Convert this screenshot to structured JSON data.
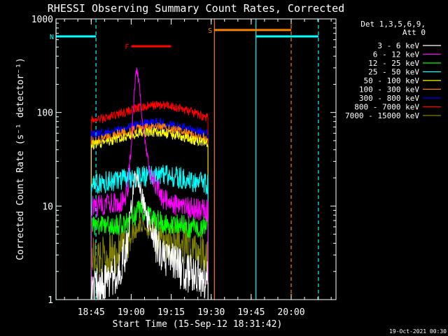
{
  "chart_data": {
    "type": "line",
    "title": "RHESSI Observing Summary Count Rates, Corrected",
    "xlabel": "Start Time (15-Sep-12 18:31:42)",
    "ylabel": "Corrected Count Rate (s⁻¹ detector⁻¹)",
    "y_scale": "log",
    "ylim": [
      1,
      1000
    ],
    "xlim": [
      18.53,
      20.28
    ],
    "x_ticks": [
      {
        "value": 18.75,
        "label": "18:45"
      },
      {
        "value": 19.0,
        "label": "19:00"
      },
      {
        "value": 19.25,
        "label": "19:15"
      },
      {
        "value": 19.5,
        "label": "19:30"
      },
      {
        "value": 19.75,
        "label": "19:45"
      },
      {
        "value": 20.0,
        "label": "20:00"
      }
    ],
    "y_ticks": [
      {
        "value": 1,
        "label": "1"
      },
      {
        "value": 10,
        "label": "10"
      },
      {
        "value": 100,
        "label": "100"
      },
      {
        "value": 1000,
        "label": "1000"
      }
    ],
    "legend_header": [
      "Det 1,3,5,6,9,",
      "Att 0"
    ],
    "legend_position": "right",
    "series": [
      {
        "name": "3 - 6 keV",
        "color": "#ffffff",
        "points": [
          [
            18.75,
            1.2
          ],
          [
            18.8,
            1.4
          ],
          [
            18.87,
            1.7
          ],
          [
            18.92,
            2.0
          ],
          [
            18.97,
            3.5
          ],
          [
            19.0,
            10
          ],
          [
            19.02,
            18
          ],
          [
            19.04,
            20
          ],
          [
            19.06,
            14
          ],
          [
            19.09,
            9
          ],
          [
            19.12,
            5.5
          ],
          [
            19.17,
            3.5
          ],
          [
            19.25,
            2.5
          ],
          [
            19.33,
            2.0
          ],
          [
            19.42,
            1.8
          ],
          [
            19.48,
            1.6
          ]
        ]
      },
      {
        "name": "6 - 12 keV",
        "color": "#ff00ff",
        "points": [
          [
            18.75,
            10
          ],
          [
            18.85,
            10.5
          ],
          [
            18.95,
            11
          ],
          [
            18.98,
            16
          ],
          [
            19.0,
            40
          ],
          [
            19.02,
            180
          ],
          [
            19.035,
            300
          ],
          [
            19.05,
            200
          ],
          [
            19.07,
            80
          ],
          [
            19.1,
            35
          ],
          [
            19.13,
            20
          ],
          [
            19.2,
            12
          ],
          [
            19.28,
            10
          ],
          [
            19.35,
            9.5
          ],
          [
            19.48,
            9
          ]
        ]
      },
      {
        "name": "12 - 25 keV",
        "color": "#00ff00",
        "points": [
          [
            18.75,
            6
          ],
          [
            18.9,
            6.2
          ],
          [
            18.98,
            6.5
          ],
          [
            19.02,
            8
          ],
          [
            19.05,
            9
          ],
          [
            19.1,
            8
          ],
          [
            19.15,
            7
          ],
          [
            19.25,
            6.5
          ],
          [
            19.35,
            6
          ],
          [
            19.48,
            6
          ]
        ]
      },
      {
        "name": "25 - 50 keV",
        "color": "#00ffff",
        "points": [
          [
            18.75,
            17
          ],
          [
            18.85,
            18
          ],
          [
            18.95,
            19
          ],
          [
            19.05,
            21
          ],
          [
            19.15,
            22
          ],
          [
            19.25,
            21
          ],
          [
            19.35,
            19
          ],
          [
            19.42,
            18
          ],
          [
            19.48,
            17
          ]
        ]
      },
      {
        "name": "50 - 100 keV",
        "color": "#ffff00",
        "points": [
          [
            18.75,
            45
          ],
          [
            18.85,
            48
          ],
          [
            18.92,
            52
          ],
          [
            19.0,
            57
          ],
          [
            19.05,
            60
          ],
          [
            19.12,
            62
          ],
          [
            19.2,
            60
          ],
          [
            19.3,
            56
          ],
          [
            19.4,
            50
          ],
          [
            19.48,
            47
          ]
        ]
      },
      {
        "name": "100 - 300 keV",
        "color": "#ff8000",
        "points": [
          [
            18.75,
            50
          ],
          [
            18.85,
            54
          ],
          [
            18.92,
            59
          ],
          [
            19.0,
            64
          ],
          [
            19.08,
            68
          ],
          [
            19.15,
            70
          ],
          [
            19.22,
            68
          ],
          [
            19.32,
            63
          ],
          [
            19.4,
            56
          ],
          [
            19.48,
            52
          ]
        ]
      },
      {
        "name": "300 - 800 keV",
        "color": "#0000ff",
        "points": [
          [
            18.75,
            57
          ],
          [
            18.85,
            62
          ],
          [
            18.95,
            68
          ],
          [
            19.05,
            74
          ],
          [
            19.12,
            78
          ],
          [
            19.2,
            77
          ],
          [
            19.3,
            72
          ],
          [
            19.4,
            65
          ],
          [
            19.48,
            58
          ]
        ]
      },
      {
        "name": "800 - 7000 keV",
        "color": "#ff0000",
        "points": [
          [
            18.75,
            82
          ],
          [
            18.85,
            88
          ],
          [
            18.95,
            100
          ],
          [
            19.05,
            112
          ],
          [
            19.15,
            120
          ],
          [
            19.25,
            118
          ],
          [
            19.35,
            105
          ],
          [
            19.42,
            95
          ],
          [
            19.48,
            87
          ]
        ]
      },
      {
        "name": "7000 - 15000 keV",
        "color": "#808000",
        "points": [
          [
            18.75,
            2.8
          ],
          [
            18.85,
            2.9
          ],
          [
            18.92,
            3.1
          ],
          [
            18.98,
            4.5
          ],
          [
            19.02,
            5.5
          ],
          [
            19.06,
            6.5
          ],
          [
            19.1,
            6
          ],
          [
            19.15,
            5
          ],
          [
            19.22,
            4.3
          ],
          [
            19.3,
            3.8
          ],
          [
            19.4,
            3.5
          ],
          [
            19.48,
            3.2
          ]
        ]
      }
    ],
    "annotations": [
      {
        "label": "N",
        "color": "#00ffff",
        "x1": 18.53,
        "x2": 18.78,
        "y": 650,
        "marker_x": 18.78
      },
      {
        "label": "F",
        "color": "#ff0000",
        "x1": 19.0,
        "x2": 19.25,
        "y": 510
      },
      {
        "label": "S",
        "color": "#ff8000",
        "x1": 19.52,
        "x2": 20.0,
        "y": 760,
        "marker_x": 20.0
      },
      {
        "label": "",
        "color": "#00ffff",
        "x1": 19.78,
        "x2": 20.17,
        "y": 650,
        "marker_x": 20.17
      }
    ],
    "vertical_lines": [
      {
        "x": 18.53,
        "color": "#00ffff",
        "dashed": false
      },
      {
        "x": 18.78,
        "color": "#00ffff",
        "dashed": true
      },
      {
        "x": 19.52,
        "color": "#ff8000",
        "dashed": false
      },
      {
        "x": 19.78,
        "color": "#00ffff",
        "dashed": false
      },
      {
        "x": 20.0,
        "color": "#ff8000",
        "dashed": true
      },
      {
        "x": 20.17,
        "color": "#00ffff",
        "dashed": true
      }
    ],
    "grid": false
  },
  "footer_timestamp": "19-Oct-2021 00:30"
}
